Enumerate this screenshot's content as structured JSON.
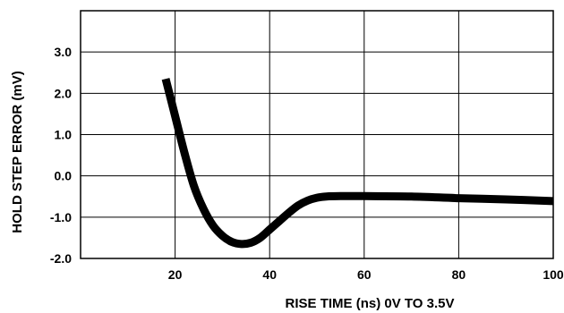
{
  "chart_data": {
    "type": "line",
    "xlabel": "RISE TIME (ns) 0V TO 3.5V",
    "ylabel": "HOLD STEP ERROR (mV)",
    "xlim": [
      0,
      100
    ],
    "ylim": [
      -2.0,
      4.0
    ],
    "x_ticks": [
      20,
      40,
      60,
      80,
      100
    ],
    "x_tick_labels": [
      "20",
      "40",
      "60",
      "80",
      "100"
    ],
    "y_ticks": [
      -2.0,
      -1.0,
      0.0,
      1.0,
      2.0,
      3.0
    ],
    "y_tick_labels": [
      "-2.0",
      "-1.0",
      "0.0",
      "1.0",
      "2.0",
      "3.0"
    ],
    "grid": true,
    "series": [
      {
        "color": "#000000",
        "x": [
          18,
          20,
          22,
          24,
          26,
          28,
          30,
          32,
          34,
          36,
          38,
          40,
          42,
          44,
          46,
          48,
          50,
          52,
          55,
          60,
          70,
          80,
          90,
          100
        ],
        "y": [
          2.35,
          1.45,
          0.55,
          -0.25,
          -0.8,
          -1.2,
          -1.45,
          -1.6,
          -1.65,
          -1.62,
          -1.5,
          -1.3,
          -1.1,
          -0.9,
          -0.72,
          -0.6,
          -0.53,
          -0.5,
          -0.49,
          -0.49,
          -0.5,
          -0.54,
          -0.57,
          -0.61
        ]
      }
    ]
  }
}
